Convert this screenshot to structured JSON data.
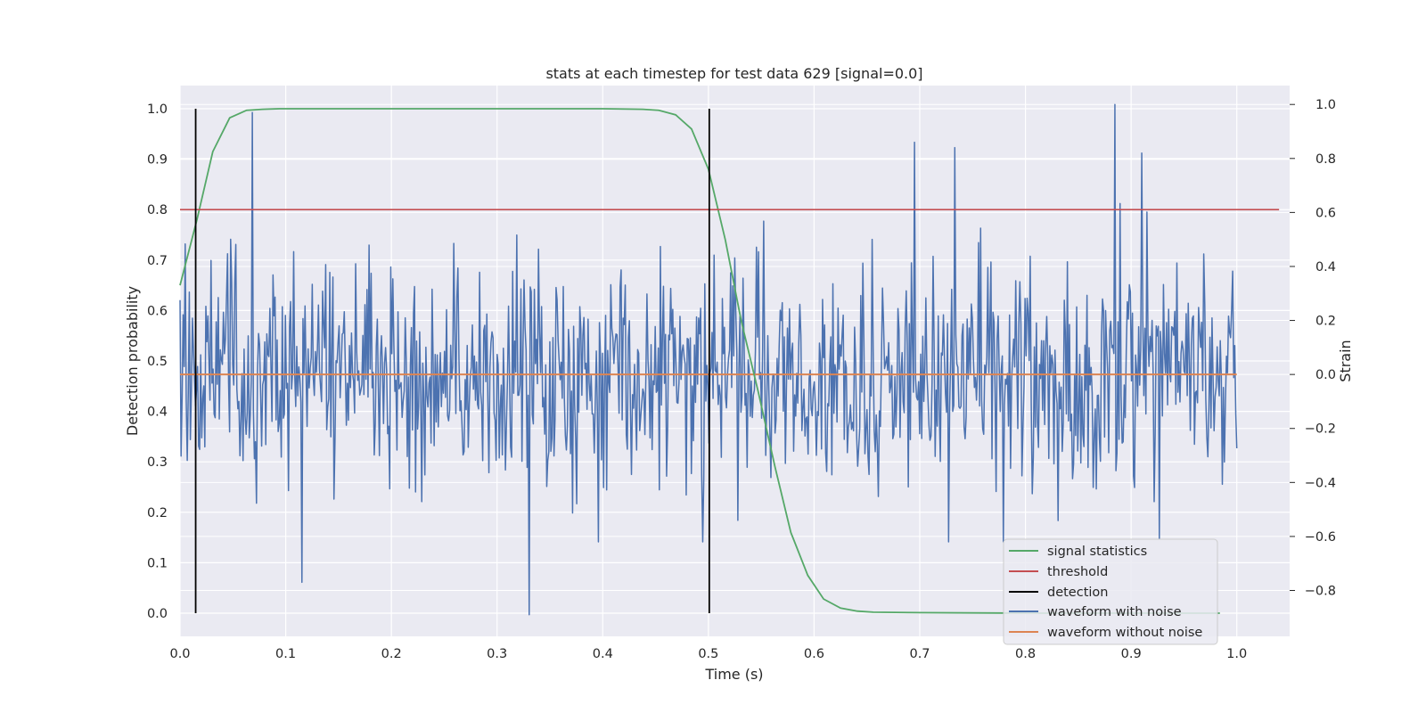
{
  "chart_data": {
    "type": "line",
    "title": "stats at each timestep for test data 629 [signal=0.0]",
    "xlabel": "Time (s)",
    "ylabel_left": "Detection probability",
    "ylabel_right": "Strain",
    "xlim": [
      0.0,
      1.05
    ],
    "ylim_left": [
      -0.046,
      1.046
    ],
    "ylim_right": [
      -0.97,
      1.07
    ],
    "x_ticks": [
      0.0,
      0.1,
      0.2,
      0.3,
      0.4,
      0.5,
      0.6,
      0.7,
      0.8,
      0.9,
      1.0
    ],
    "x_tick_labels": [
      "0.0",
      "0.1",
      "0.2",
      "0.3",
      "0.4",
      "0.5",
      "0.6",
      "0.7",
      "0.8",
      "0.9",
      "1.0"
    ],
    "y_left_ticks": [
      0.0,
      0.1,
      0.2,
      0.3,
      0.4,
      0.5,
      0.6,
      0.7,
      0.8,
      0.9,
      1.0
    ],
    "y_left_tick_labels": [
      "0.0",
      "0.1",
      "0.2",
      "0.3",
      "0.4",
      "0.5",
      "0.6",
      "0.7",
      "0.8",
      "0.9",
      "1.0"
    ],
    "y_right_ticks": [
      -0.8,
      -0.6,
      -0.4,
      -0.2,
      0.0,
      0.2,
      0.4,
      0.6,
      0.8,
      1.0
    ],
    "y_right_tick_labels": [
      "−0.8",
      "−0.6",
      "−0.4",
      "−0.2",
      "0.0",
      "0.2",
      "0.4",
      "0.6",
      "0.8",
      "1.0"
    ],
    "grid": true,
    "legend_position": "bottom-right",
    "series": [
      {
        "name": "signal statistics",
        "color": "#55a868",
        "axis": "left",
        "x": [
          0.0,
          0.016,
          0.031,
          0.047,
          0.063,
          0.078,
          0.094,
          0.2,
          0.3,
          0.4,
          0.438,
          0.453,
          0.469,
          0.484,
          0.5,
          0.516,
          0.531,
          0.547,
          0.563,
          0.578,
          0.594,
          0.609,
          0.625,
          0.641,
          0.656,
          0.7,
          0.8,
          0.9,
          0.984
        ],
        "y": [
          0.65,
          0.78,
          0.915,
          0.982,
          0.997,
          0.999,
          1.0,
          1.0,
          1.0,
          1.0,
          0.999,
          0.997,
          0.988,
          0.96,
          0.88,
          0.74,
          0.58,
          0.44,
          0.29,
          0.16,
          0.075,
          0.028,
          0.01,
          0.004,
          0.002,
          0.001,
          0.0,
          0.0,
          0.0
        ]
      },
      {
        "name": "threshold",
        "color": "#c44e52",
        "axis": "left",
        "x": [
          0.0,
          1.04
        ],
        "y": [
          0.8,
          0.8
        ]
      },
      {
        "name": "detection",
        "color": "#000000",
        "axis": "left",
        "x": [
          0.0148,
          0.5008
        ],
        "y_range": [
          0.0,
          1.0
        ]
      },
      {
        "name": "waveform with noise",
        "color": "#4c72b0",
        "axis": "right",
        "x_range": [
          0.0,
          1.0
        ],
        "n_points": 1024,
        "amplitude_std": 0.2,
        "y_min": -0.89,
        "y_max": 1.0,
        "annotated_extremes": [
          {
            "x": 0.068,
            "y": 0.97
          },
          {
            "x": 0.115,
            "y": -0.77
          },
          {
            "x": 0.33,
            "y": -0.89
          },
          {
            "x": 0.695,
            "y": 0.86
          },
          {
            "x": 0.733,
            "y": 0.84
          },
          {
            "x": 0.885,
            "y": 1.0
          },
          {
            "x": 0.91,
            "y": 0.82
          }
        ]
      },
      {
        "name": "waveform without noise",
        "color": "#dd8452",
        "axis": "right",
        "x": [
          0.0,
          1.0
        ],
        "y": [
          0.0,
          0.0
        ]
      }
    ]
  }
}
